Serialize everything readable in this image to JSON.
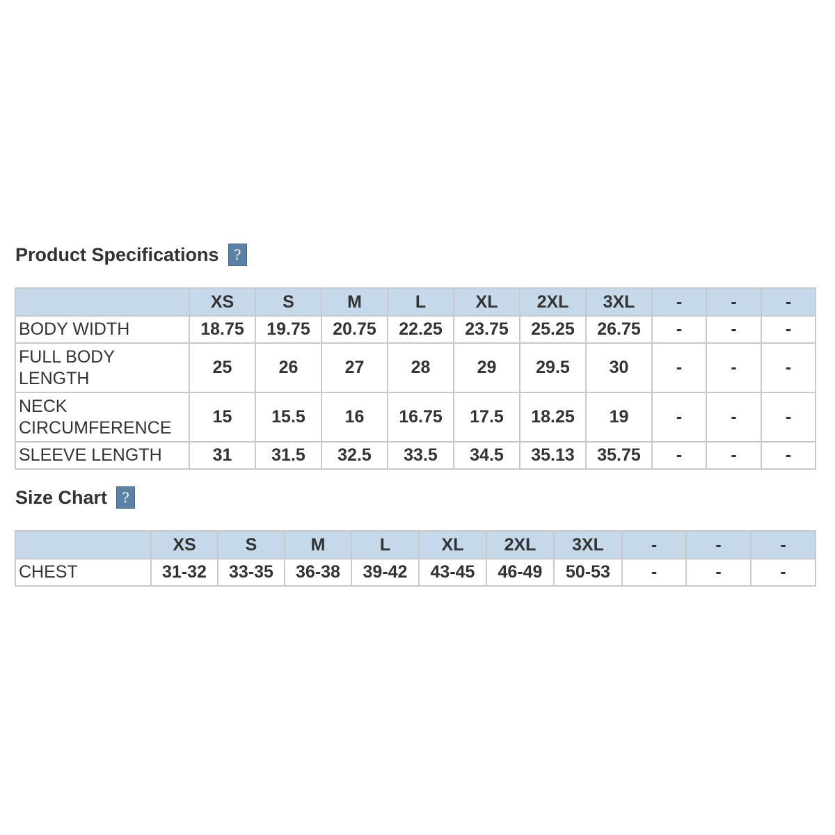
{
  "product_specifications": {
    "title": "Product Specifications",
    "help_icon": "?",
    "columns": [
      "",
      "XS",
      "S",
      "M",
      "L",
      "XL",
      "2XL",
      "3XL",
      "-",
      "-",
      "-"
    ],
    "rows": [
      {
        "label": "BODY WIDTH",
        "values": [
          "18.75",
          "19.75",
          "20.75",
          "22.25",
          "23.75",
          "25.25",
          "26.75",
          "-",
          "-",
          "-"
        ]
      },
      {
        "label": "FULL BODY LENGTH",
        "values": [
          "25",
          "26",
          "27",
          "28",
          "29",
          "29.5",
          "30",
          "-",
          "-",
          "-"
        ]
      },
      {
        "label": "NECK CIRCUMFERENCE",
        "values": [
          "15",
          "15.5",
          "16",
          "16.75",
          "17.5",
          "18.25",
          "19",
          "-",
          "-",
          "-"
        ]
      },
      {
        "label": "SLEEVE LENGTH",
        "values": [
          "31",
          "31.5",
          "32.5",
          "33.5",
          "34.5",
          "35.13",
          "35.75",
          "-",
          "-",
          "-"
        ]
      }
    ]
  },
  "size_chart": {
    "title": "Size Chart",
    "help_icon": "?",
    "columns": [
      "",
      "XS",
      "S",
      "M",
      "L",
      "XL",
      "2XL",
      "3XL",
      "-",
      "-",
      "-"
    ],
    "rows": [
      {
        "label": "CHEST",
        "values": [
          "31-32",
          "33-35",
          "36-38",
          "39-42",
          "43-45",
          "46-49",
          "50-53",
          "-",
          "-",
          "-"
        ]
      }
    ]
  },
  "colors": {
    "header_bg": "#c5d9ea",
    "help_icon_bg": "#5b82a6",
    "border": "#c9c9c9",
    "text": "#333333"
  }
}
